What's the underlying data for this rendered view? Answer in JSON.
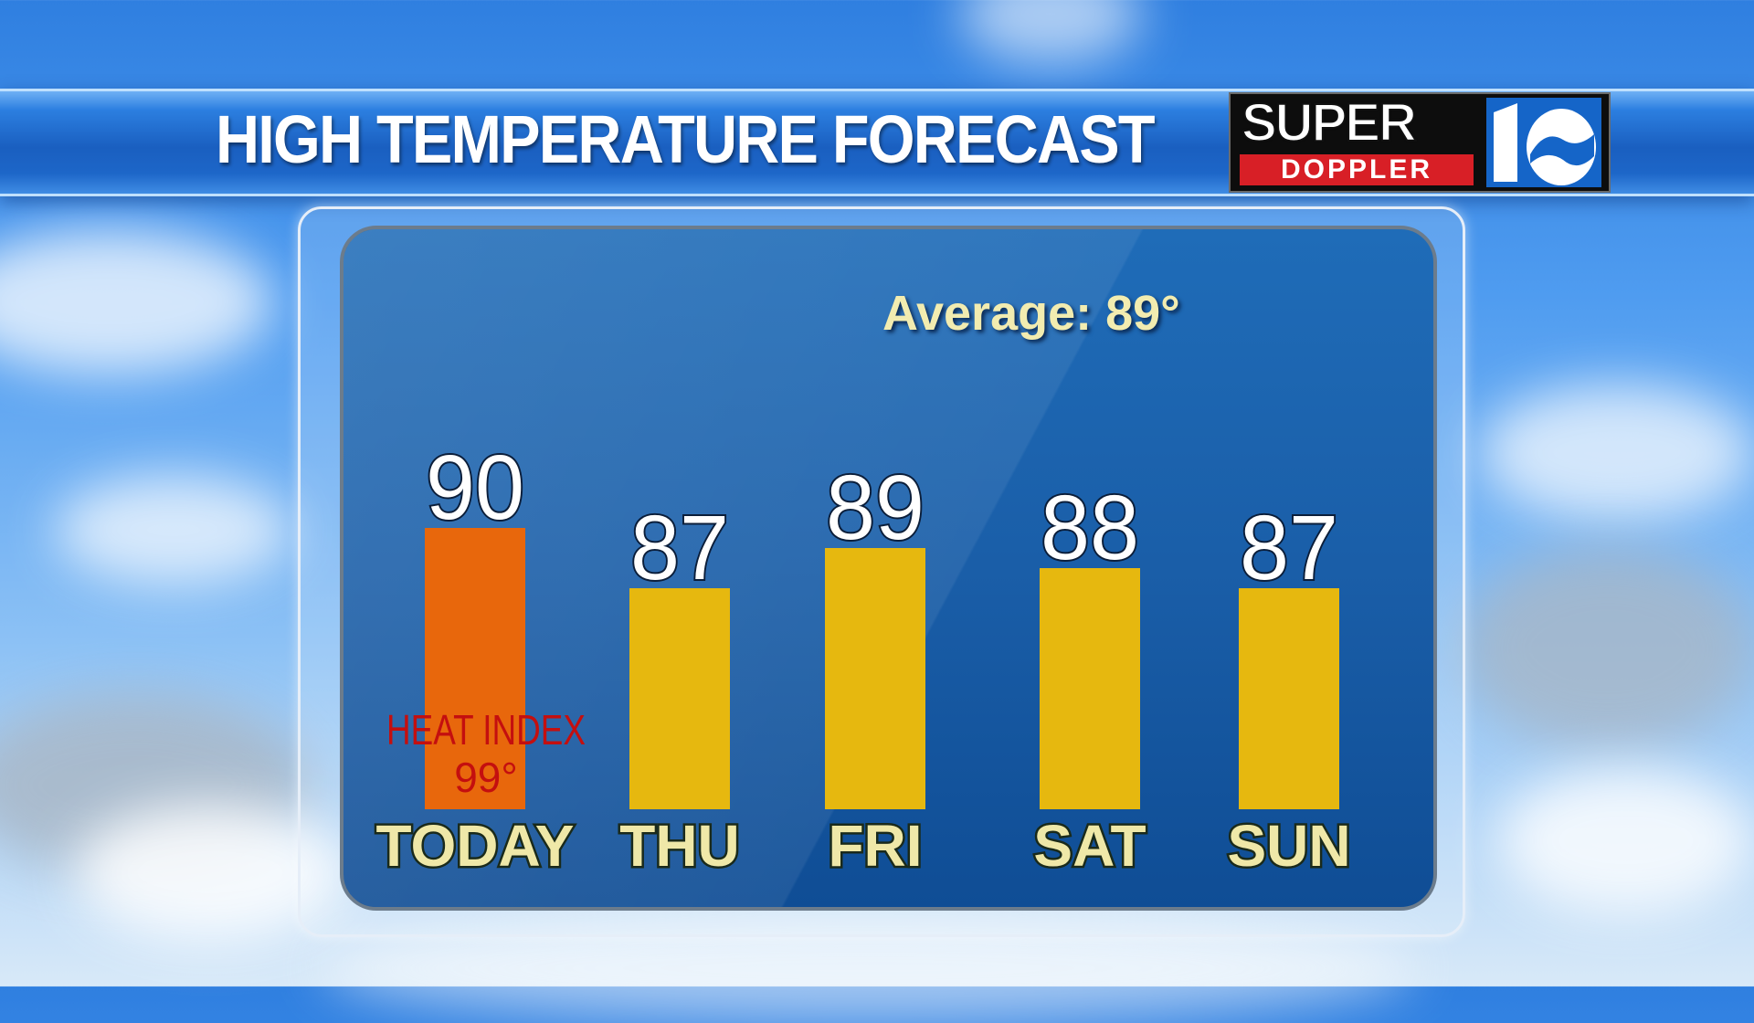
{
  "header": {
    "title": "HIGH TEMPERATURE FORECAST"
  },
  "logo": {
    "line1": "SUPER",
    "line2": "DOPPLER",
    "channel_icon": "channel-10-wave-logo"
  },
  "average_label": "Average: 89°",
  "annotation": {
    "line1": "HEAT INDEX",
    "line2": "99°"
  },
  "colors": {
    "today_bar": "#e8670c",
    "bar": "#e6b80f",
    "annotation": "#c40f0f",
    "day_label": "#efe8a8"
  },
  "chart_data": {
    "type": "bar",
    "title": "HIGH TEMPERATURE FORECAST",
    "categories": [
      "TODAY",
      "THU",
      "FRI",
      "SAT",
      "SUN"
    ],
    "values": [
      90,
      87,
      89,
      88,
      87
    ],
    "value_labels": [
      "90",
      "87",
      "89",
      "88",
      "87"
    ],
    "highlight_index": 0,
    "grid": false,
    "legend": "none"
  }
}
